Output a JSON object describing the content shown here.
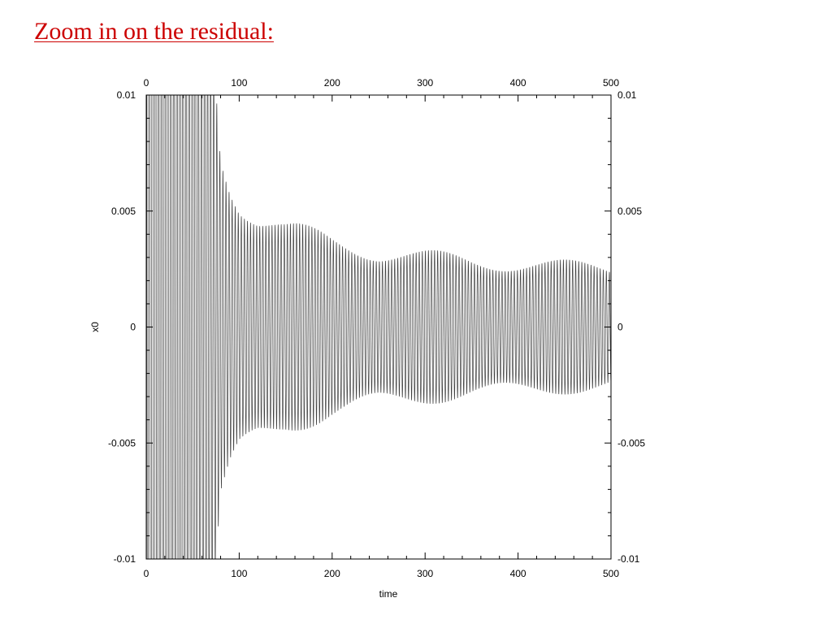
{
  "slide": {
    "title": "Zoom in on the residual:",
    "title_color": "#cc0000"
  },
  "chart_data": {
    "type": "line",
    "title": "",
    "xlabel": "time",
    "ylabel": "x0",
    "xlim": [
      0,
      500
    ],
    "ylim": [
      -0.01,
      0.01
    ],
    "x_ticks": [
      0,
      100,
      200,
      300,
      400,
      500
    ],
    "x_tick_labels": [
      "0",
      "100",
      "200",
      "300",
      "400",
      "500"
    ],
    "y_ticks": [
      -0.01,
      -0.005,
      0,
      0.005,
      0.01
    ],
    "y_tick_labels": [
      "-0.01",
      "-0.005",
      "0",
      "0.005",
      "0.01"
    ],
    "mirror_axes": true,
    "grid": false,
    "line_color": "#000000",
    "series": [
      {
        "description_of_shape": "damped oscillation, period ~3.3, clipped beyond ±0.01 until t≈75",
        "period": 3.3,
        "envelope": {
          "t": [
            0,
            40,
            60,
            70,
            75,
            80,
            90,
            100,
            120,
            150,
            200,
            250,
            300,
            350,
            400,
            450,
            500
          ],
          "amp": [
            0.05,
            0.03,
            0.018,
            0.013,
            0.0105,
            0.0075,
            0.0063,
            0.0055,
            0.0048,
            0.0042,
            0.0036,
            0.0032,
            0.003,
            0.0028,
            0.0027,
            0.0026,
            0.0025
          ]
        }
      }
    ]
  }
}
